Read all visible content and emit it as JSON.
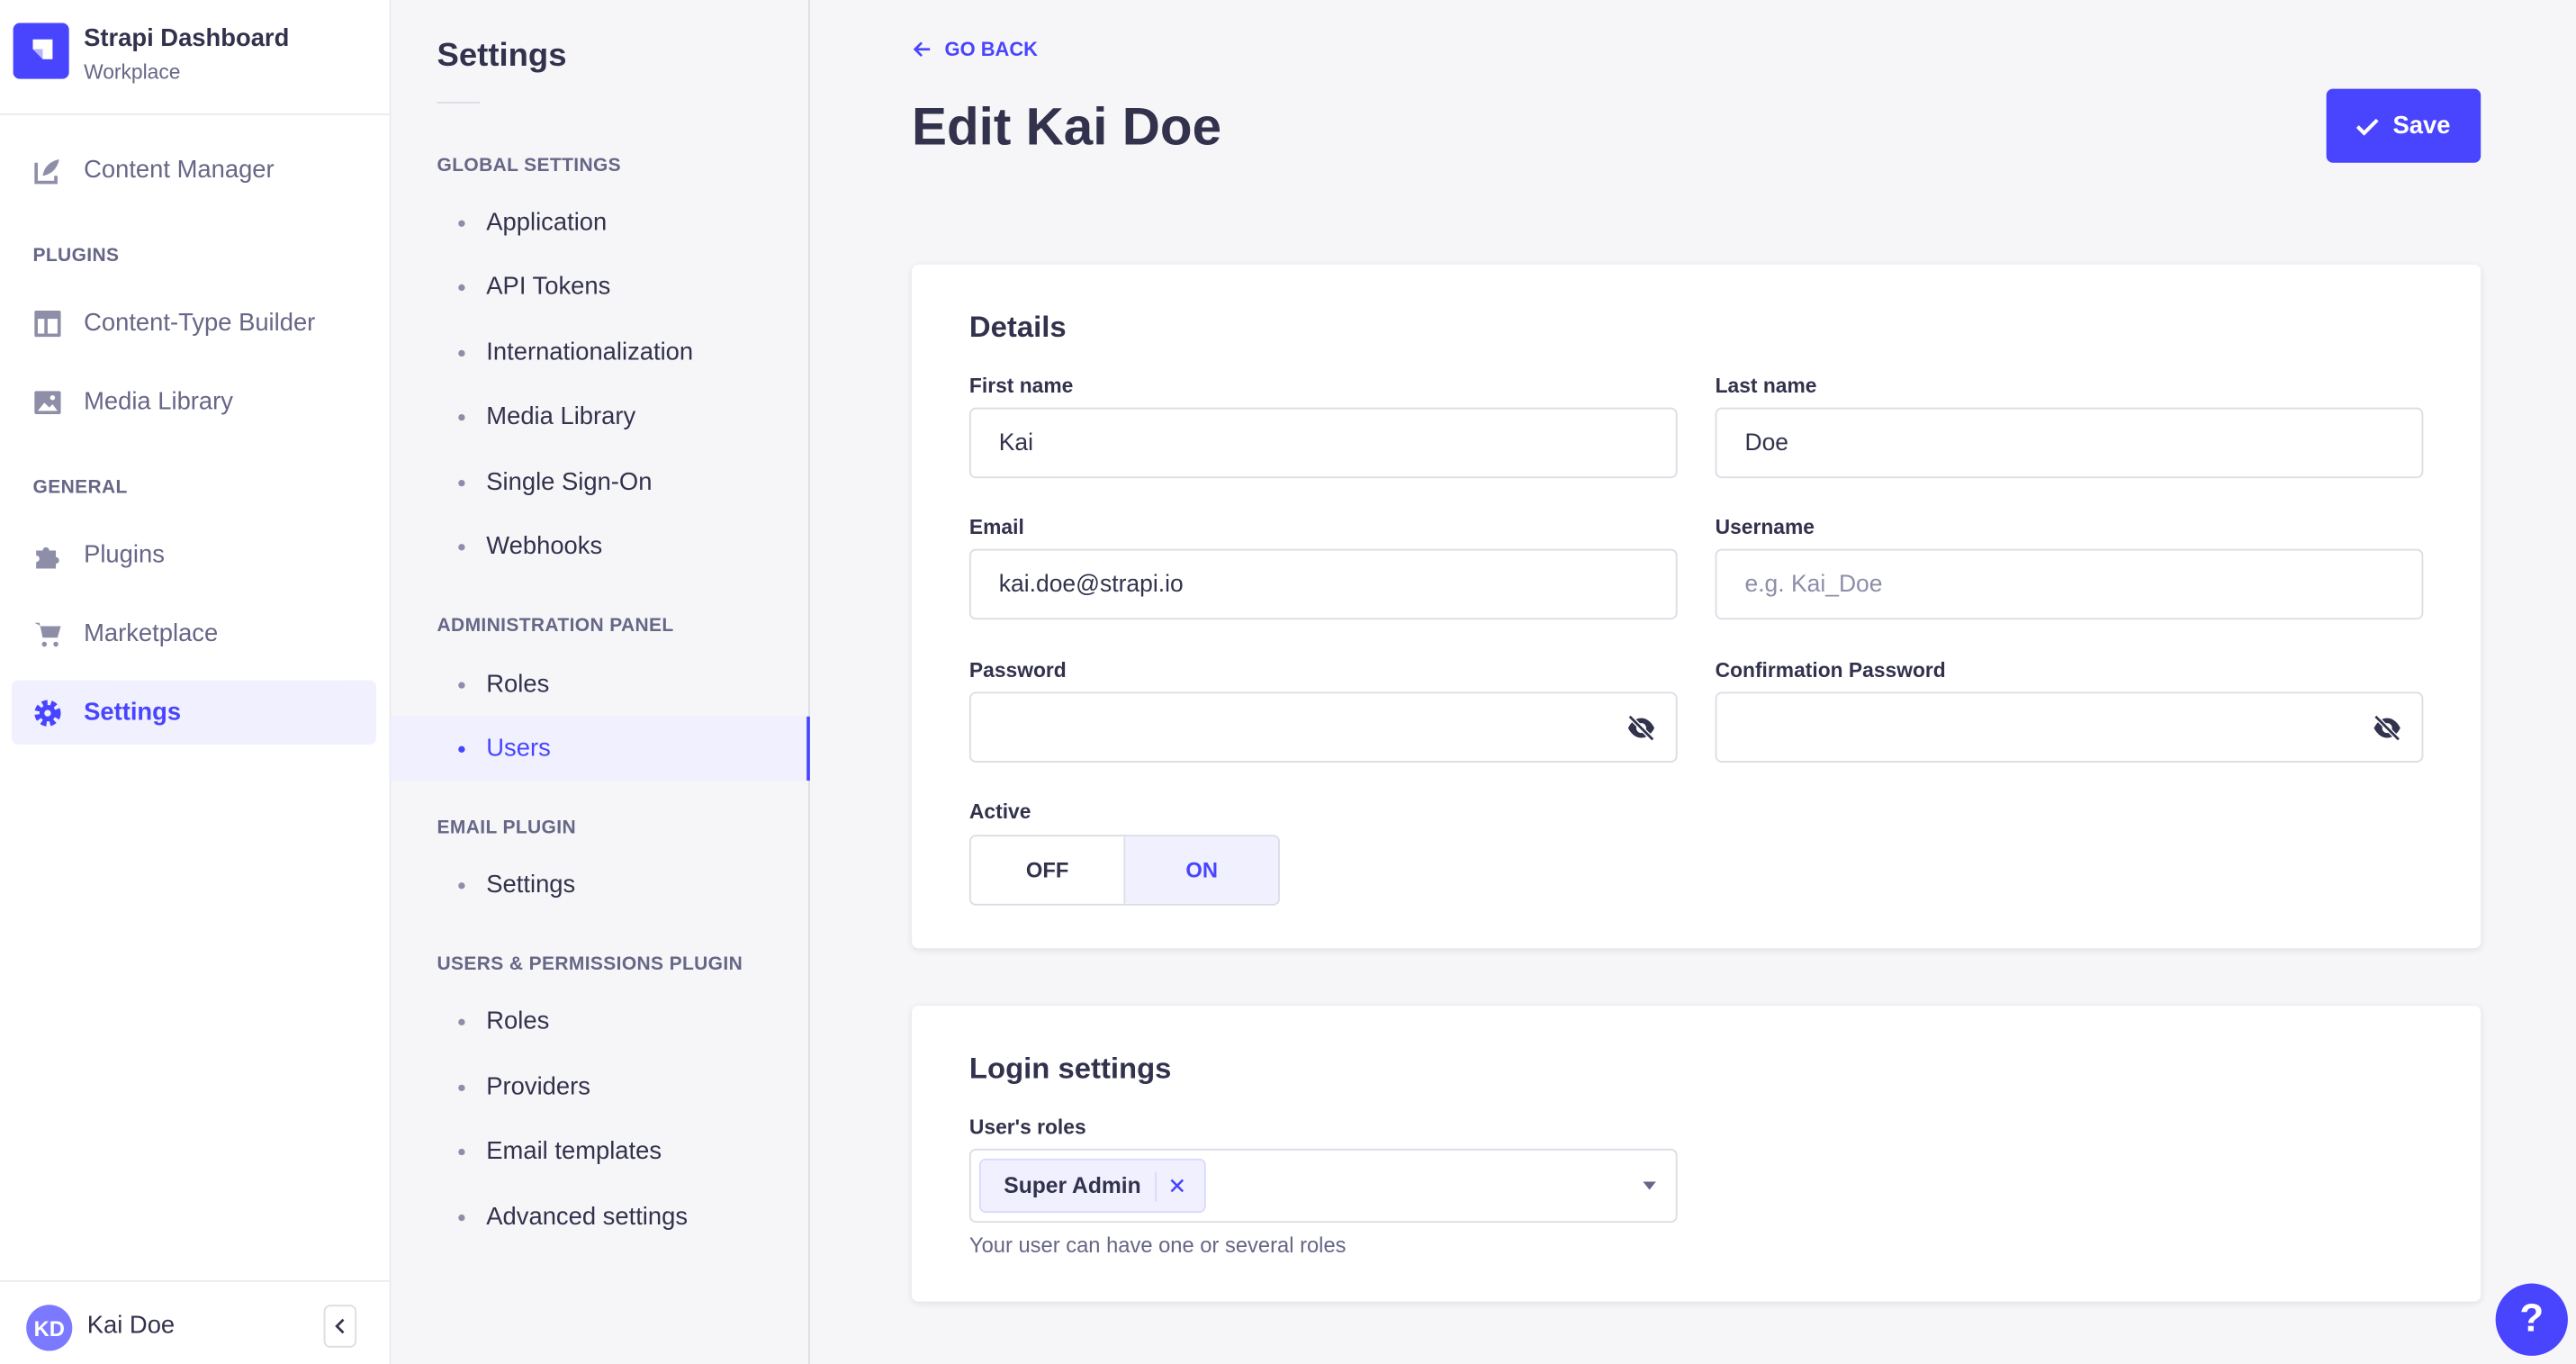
{
  "app": {
    "title": "Strapi Dashboard",
    "subtitle": "Workplace",
    "brand_color": "#4945ff"
  },
  "nav": {
    "content_manager": "Content Manager",
    "plugins_label": "PLUGINS",
    "plugins": [
      "Content-Type Builder",
      "Media Library"
    ],
    "general_label": "GENERAL",
    "general": [
      "Plugins",
      "Marketplace",
      "Settings"
    ],
    "active": "Settings",
    "user": {
      "initials": "KD",
      "name": "Kai Doe"
    }
  },
  "settings_nav": {
    "title": "Settings",
    "sections": [
      {
        "label": "GLOBAL SETTINGS",
        "items": [
          "Application",
          "API Tokens",
          "Internationalization",
          "Media Library",
          "Single Sign-On",
          "Webhooks"
        ]
      },
      {
        "label": "ADMINISTRATION PANEL",
        "items": [
          "Roles",
          "Users"
        ]
      },
      {
        "label": "EMAIL PLUGIN",
        "items": [
          "Settings"
        ]
      },
      {
        "label": "USERS & PERMISSIONS PLUGIN",
        "items": [
          "Roles",
          "Providers",
          "Email templates",
          "Advanced settings"
        ]
      }
    ],
    "active": "Users"
  },
  "header": {
    "go_back": "GO BACK",
    "title": "Edit Kai Doe",
    "save": "Save"
  },
  "details": {
    "title": "Details",
    "first_name": {
      "label": "First name",
      "value": "Kai"
    },
    "last_name": {
      "label": "Last name",
      "value": "Doe"
    },
    "email": {
      "label": "Email",
      "value": "kai.doe@strapi.io"
    },
    "username": {
      "label": "Username",
      "value": "",
      "placeholder": "e.g. Kai_Doe"
    },
    "password": {
      "label": "Password",
      "value": ""
    },
    "confirm_password": {
      "label": "Confirmation Password",
      "value": ""
    },
    "active": {
      "label": "Active",
      "off": "OFF",
      "on": "ON",
      "value": "ON"
    }
  },
  "login": {
    "title": "Login settings",
    "roles_label": "User's roles",
    "roles": [
      "Super Admin"
    ],
    "hint": "Your user can have one or several roles"
  },
  "help": "?"
}
